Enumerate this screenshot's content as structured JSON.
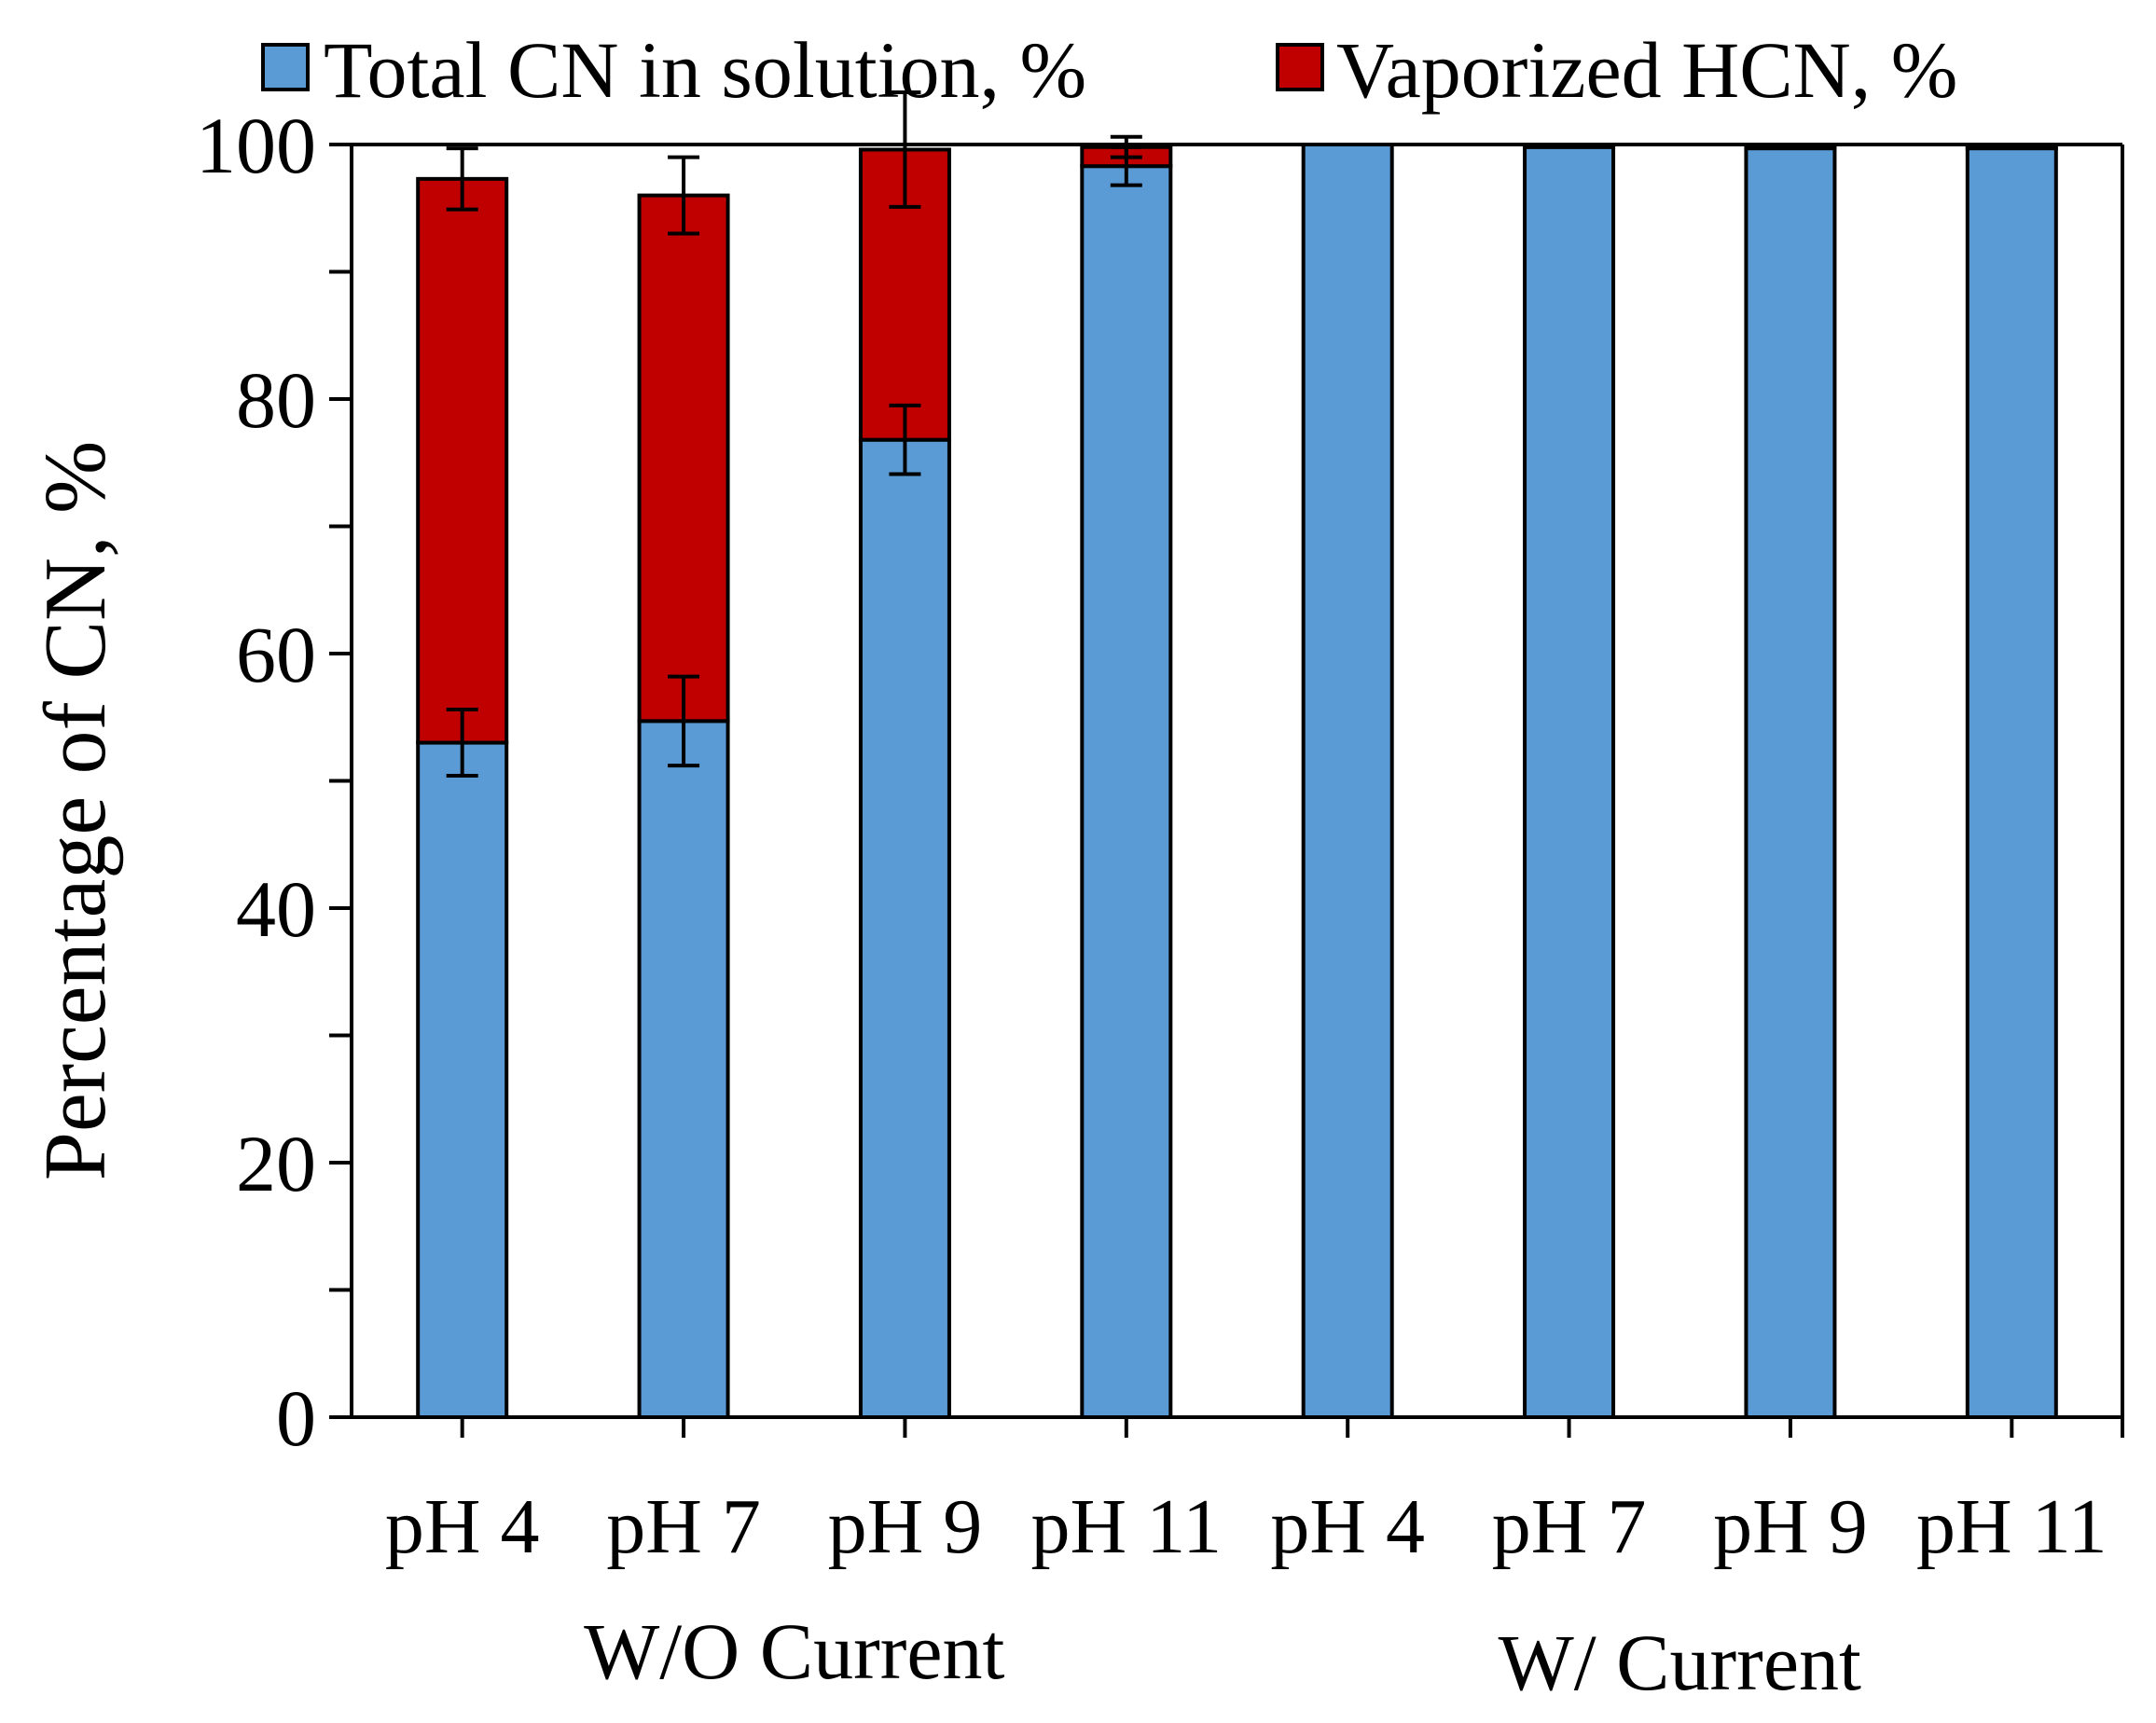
{
  "chart_data": {
    "type": "bar",
    "stacked": true,
    "title": "",
    "xlabel": "",
    "ylabel": "Percentage of CN, %",
    "ylim": [
      0,
      100
    ],
    "yticks": [
      0,
      20,
      40,
      60,
      80,
      100
    ],
    "y_minor_step": 10,
    "legend_position": "top",
    "categories": [
      "pH 4",
      "pH 7",
      "pH 9",
      "pH 11",
      "pH 4",
      "pH 7",
      "pH 9",
      "pH 11"
    ],
    "groups": [
      {
        "label": "W/O Current",
        "start": 0,
        "end": 3
      },
      {
        "label": "W/ Current",
        "start": 4,
        "end": 7
      }
    ],
    "series": [
      {
        "name": "Total CN in solution, %",
        "color": "#5b9bd5",
        "values": [
          53,
          54.7,
          76.8,
          98.3,
          100,
          99.8,
          99.7,
          99.7
        ],
        "errors": [
          2.6,
          3.5,
          2.7,
          1.5,
          0,
          0,
          0,
          0
        ]
      },
      {
        "name": "Vaporized HCN, %",
        "color": "#c00000",
        "values": [
          44.3,
          41.3,
          22.8,
          1.5,
          0,
          0.1,
          0.1,
          0.1
        ],
        "errors": [
          2.4,
          3.0,
          4.5,
          0.8,
          0,
          0,
          0,
          0
        ]
      }
    ]
  }
}
